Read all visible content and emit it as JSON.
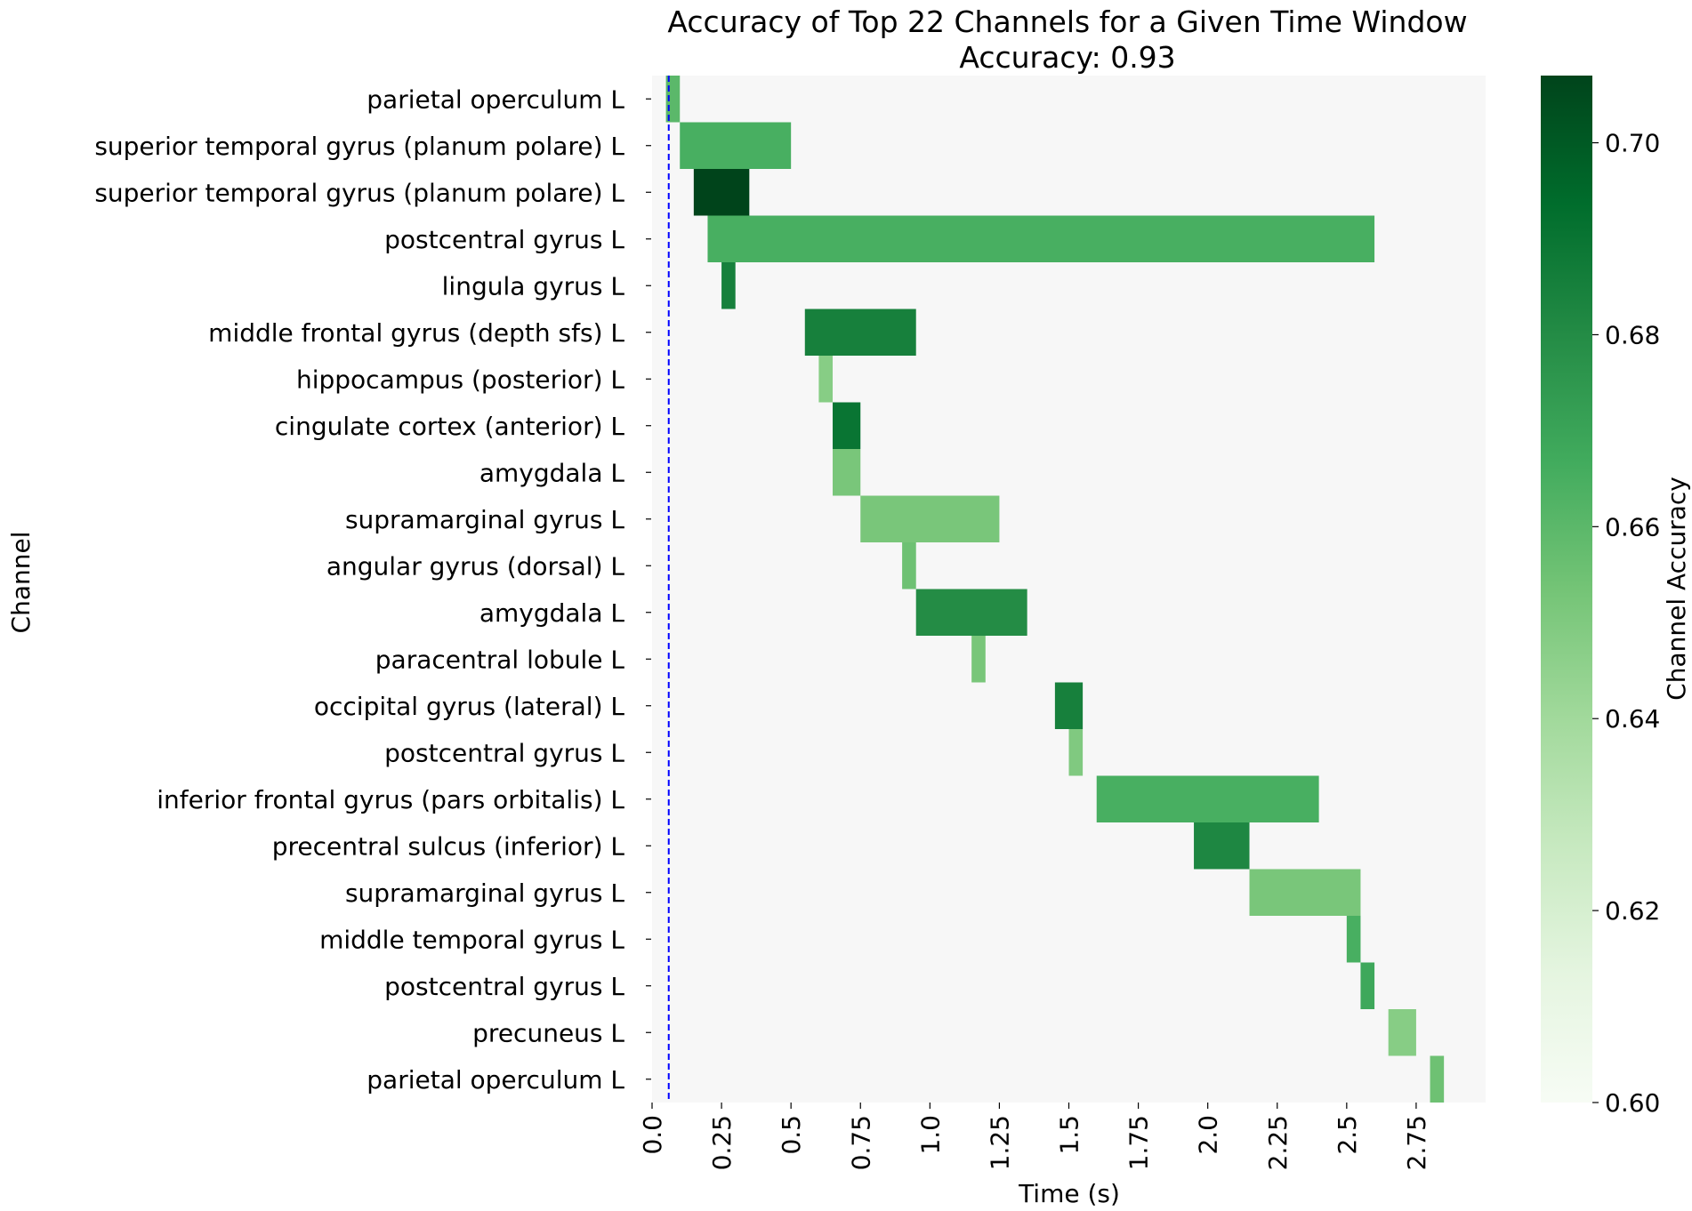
{
  "chart_data": {
    "type": "heatmap",
    "title": "Accuracy of Top 22 Channels for a Given Time Window",
    "subtitle": "Accuracy: 0.93",
    "xlabel": "Time (s)",
    "ylabel": "Channel",
    "colorbar_label": "Channel Accuracy",
    "xlim": [
      0.0,
      3.0
    ],
    "clim": [
      0.6,
      0.707
    ],
    "x_ticks": [
      0.0,
      0.25,
      0.5,
      0.75,
      1.0,
      1.25,
      1.5,
      1.75,
      2.0,
      2.25,
      2.5,
      2.75
    ],
    "x_tick_labels": [
      "0.0",
      "0.25",
      "0.5",
      "0.75",
      "1.0",
      "1.25",
      "1.5",
      "1.75",
      "2.0",
      "2.25",
      "2.5",
      "2.75"
    ],
    "colorbar_ticks": [
      0.6,
      0.62,
      0.64,
      0.66,
      0.68,
      0.7
    ],
    "colorbar_tick_labels": [
      "0.60",
      "0.62",
      "0.64",
      "0.66",
      "0.68",
      "0.70"
    ],
    "reference_line": {
      "x": 0.06,
      "color": "#0000ff",
      "style": "dashed"
    },
    "background_color": "#f7f7f7",
    "colormap": "Greens",
    "channels": [
      "parietal operculum L",
      "superior temporal gyrus (planum polare) L",
      "superior temporal gyrus (planum polare) L",
      "postcentral gyrus L",
      "lingula gyrus L",
      "middle frontal gyrus (depth sfs) L",
      "hippocampus (posterior) L",
      "cingulate cortex (anterior) L",
      "amygdala L",
      "supramarginal gyrus L",
      "angular gyrus (dorsal) L",
      "amygdala L",
      "paracentral lobule L",
      "occipital gyrus (lateral) L",
      "postcentral gyrus L",
      "inferior frontal gyrus (pars orbitalis) L",
      "precentral sulcus (inferior) L",
      "supramarginal gyrus L",
      "middle temporal gyrus L",
      "postcentral gyrus L",
      "precuneus L",
      "parietal operculum L"
    ],
    "cells": [
      {
        "row": 0,
        "start": 0.05,
        "end": 0.1,
        "value": 0.66
      },
      {
        "row": 1,
        "start": 0.1,
        "end": 0.5,
        "value": 0.665
      },
      {
        "row": 2,
        "start": 0.15,
        "end": 0.35,
        "value": 0.707
      },
      {
        "row": 3,
        "start": 0.2,
        "end": 2.6,
        "value": 0.665
      },
      {
        "row": 4,
        "start": 0.25,
        "end": 0.3,
        "value": 0.685
      },
      {
        "row": 5,
        "start": 0.55,
        "end": 0.95,
        "value": 0.685
      },
      {
        "row": 6,
        "start": 0.6,
        "end": 0.65,
        "value": 0.648
      },
      {
        "row": 7,
        "start": 0.65,
        "end": 0.75,
        "value": 0.69
      },
      {
        "row": 8,
        "start": 0.65,
        "end": 0.75,
        "value": 0.652
      },
      {
        "row": 9,
        "start": 0.75,
        "end": 1.25,
        "value": 0.652
      },
      {
        "row": 10,
        "start": 0.9,
        "end": 0.95,
        "value": 0.655
      },
      {
        "row": 11,
        "start": 0.95,
        "end": 1.35,
        "value": 0.68
      },
      {
        "row": 12,
        "start": 1.15,
        "end": 1.2,
        "value": 0.652
      },
      {
        "row": 13,
        "start": 1.45,
        "end": 1.55,
        "value": 0.685
      },
      {
        "row": 14,
        "start": 1.5,
        "end": 1.55,
        "value": 0.65
      },
      {
        "row": 15,
        "start": 1.6,
        "end": 2.4,
        "value": 0.665
      },
      {
        "row": 16,
        "start": 1.95,
        "end": 2.15,
        "value": 0.682
      },
      {
        "row": 17,
        "start": 2.15,
        "end": 2.55,
        "value": 0.652
      },
      {
        "row": 18,
        "start": 2.5,
        "end": 2.55,
        "value": 0.665
      },
      {
        "row": 19,
        "start": 2.55,
        "end": 2.6,
        "value": 0.668
      },
      {
        "row": 20,
        "start": 2.65,
        "end": 2.75,
        "value": 0.648
      },
      {
        "row": 21,
        "start": 2.8,
        "end": 2.85,
        "value": 0.655
      }
    ]
  }
}
